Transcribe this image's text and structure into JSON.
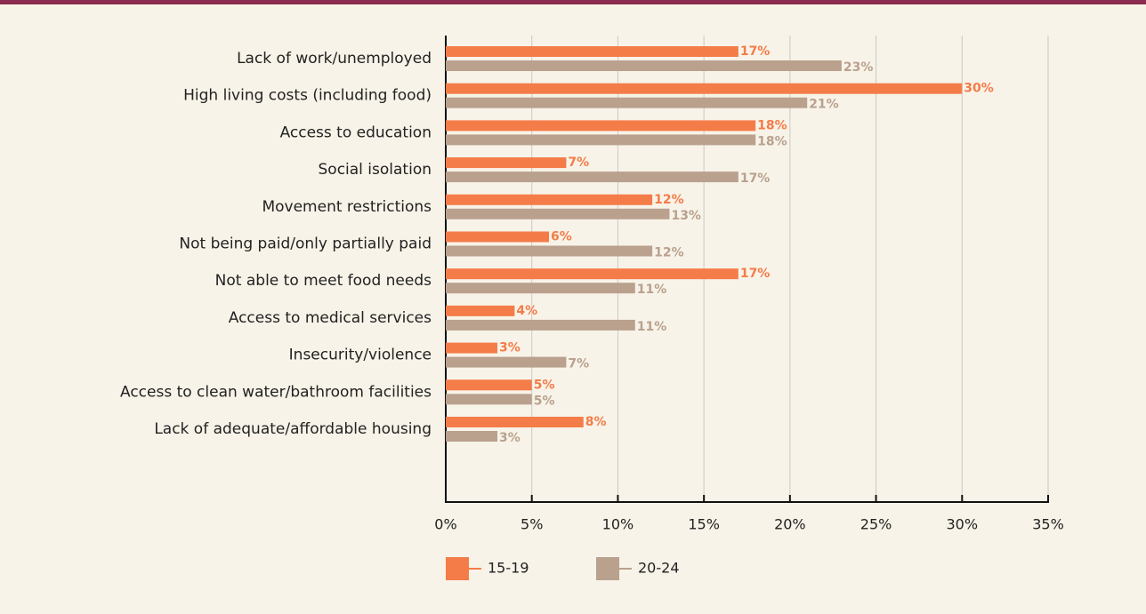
{
  "chart_data": {
    "type": "bar",
    "orientation": "horizontal",
    "categories": [
      "Lack of work/unemployed",
      "High living costs (including food)",
      "Access to education",
      "Social isolation",
      "Movement restrictions",
      "Not being paid/only partially paid",
      "Not able to meet food needs",
      "Access to medical services",
      "Insecurity/violence",
      "Access to clean water/bathroom facilities",
      "Lack of adequate/affordable housing"
    ],
    "series": [
      {
        "name": "15-19",
        "color": "#f47c48",
        "values": [
          17,
          30,
          18,
          7,
          12,
          6,
          17,
          4,
          3,
          5,
          8
        ],
        "value_labels": [
          "17%",
          "30%",
          "18%",
          "7%",
          "12%",
          "6%",
          "17%",
          "4%",
          "3%",
          "5%",
          "8%"
        ]
      },
      {
        "name": "20-24",
        "color": "#b9a18e",
        "values": [
          23,
          21,
          18,
          17,
          13,
          12,
          11,
          11,
          7,
          5,
          3
        ],
        "value_labels": [
          "23%",
          "21%",
          "18%",
          "17%",
          "13%",
          "12%",
          "11%",
          "11%",
          "7%",
          "5%",
          "3%"
        ]
      }
    ],
    "xlim": [
      0,
      35
    ],
    "xticks": [
      {
        "value": 0,
        "label": "0%"
      },
      {
        "value": 5,
        "label": "5%"
      },
      {
        "value": 10,
        "label": "10%"
      },
      {
        "value": 15,
        "label": "15%"
      },
      {
        "value": 20,
        "label": "20%"
      },
      {
        "value": 25,
        "label": "25%"
      },
      {
        "value": 30,
        "label": "30%"
      },
      {
        "value": 35,
        "label": "35%"
      }
    ],
    "grid": true,
    "legend": "bottom"
  }
}
